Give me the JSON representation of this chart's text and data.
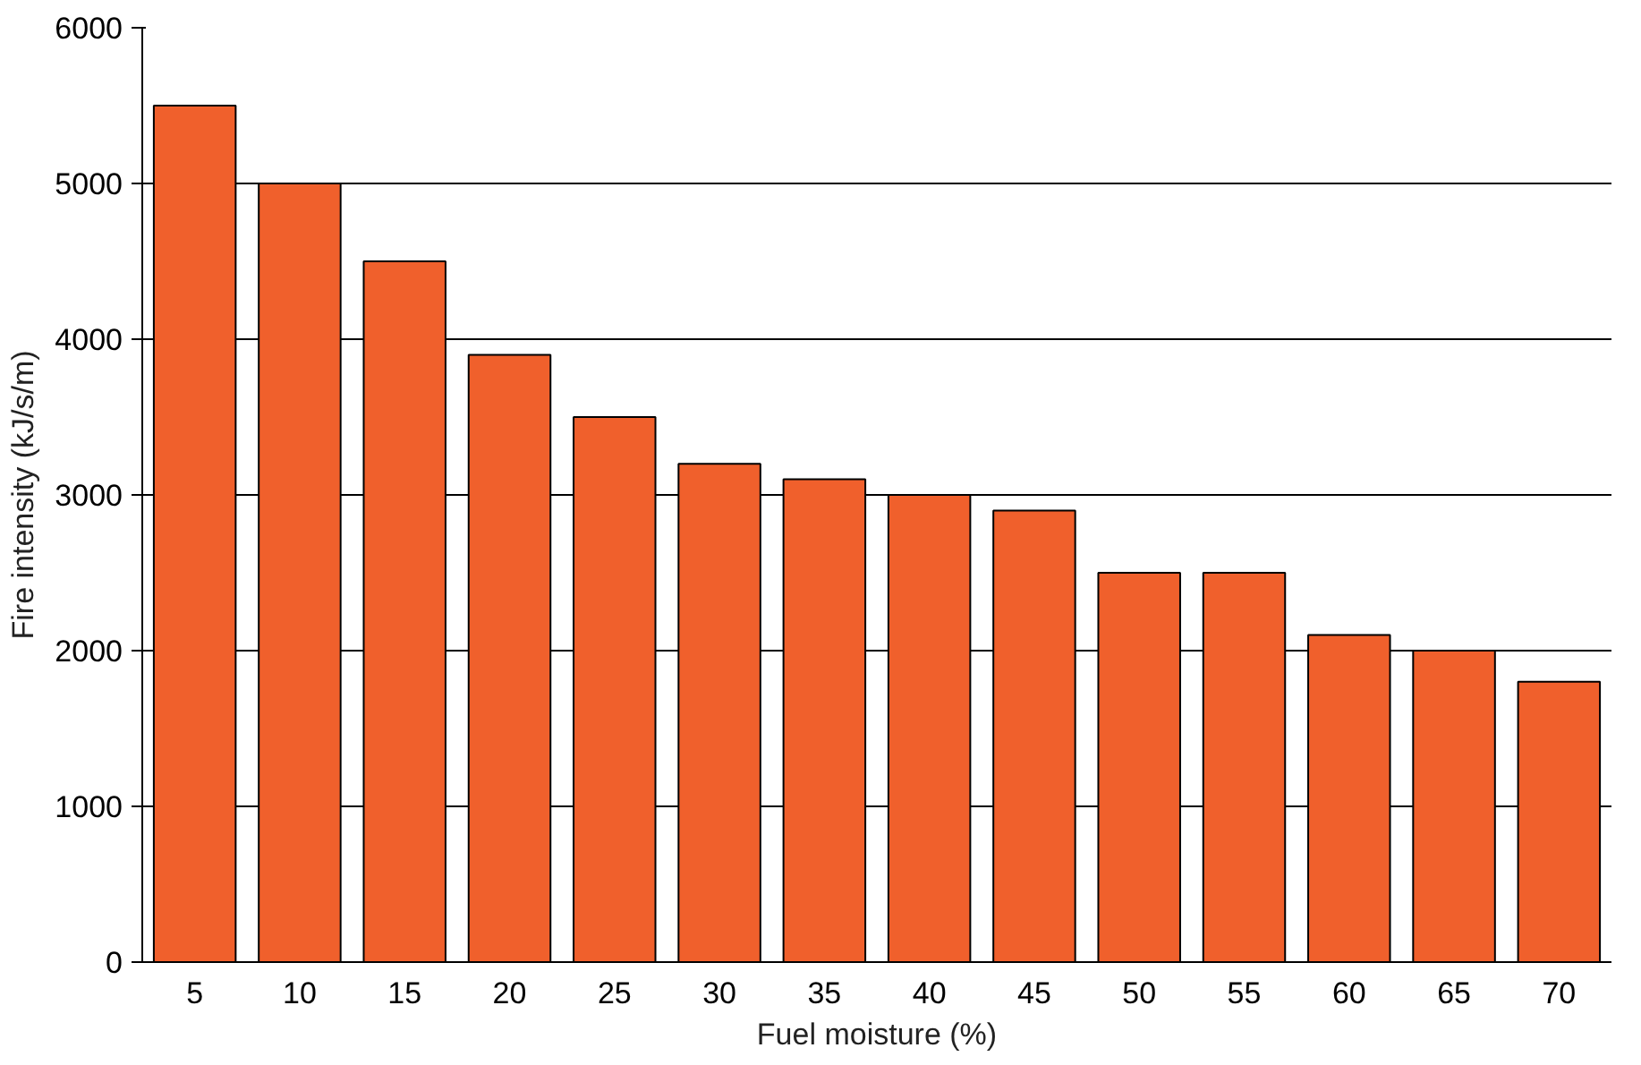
{
  "chart_data": {
    "type": "bar",
    "xlabel": "Fuel moisture (%)",
    "ylabel": "Fire intensity (kJ/s/m)",
    "categories": [
      "5",
      "10",
      "15",
      "20",
      "25",
      "30",
      "35",
      "40",
      "45",
      "50",
      "55",
      "60",
      "65",
      "70"
    ],
    "values": [
      5500,
      5000,
      4500,
      3900,
      3500,
      3200,
      3100,
      3000,
      2900,
      2500,
      2500,
      2100,
      2000,
      1800
    ],
    "color": "#f0602c",
    "ylim": [
      0,
      6000
    ],
    "yticks": [
      0,
      1000,
      2000,
      3000,
      4000,
      5000,
      6000
    ],
    "grid": "y"
  }
}
